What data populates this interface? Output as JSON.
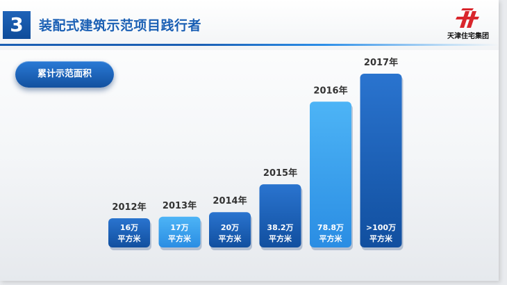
{
  "header": {
    "section_number": "3",
    "title": "装配式建筑示范项目践行者",
    "logo_text": "天津住宅集团"
  },
  "pill_label": "累计示范面积",
  "colors": {
    "dark_blue": "#1a5fb4",
    "light_blue": "#43a7ef"
  },
  "chart_data": {
    "type": "bar",
    "title": "累计示范面积",
    "categories": [
      "2012年",
      "2013年",
      "2014年",
      "2015年",
      "2016年",
      "2017年"
    ],
    "values": [
      16,
      17,
      20,
      38.2,
      78.8,
      100
    ],
    "unit": "万平方米",
    "bar_labels": [
      [
        "16万",
        "平方米"
      ],
      [
        "17万",
        "平方米"
      ],
      [
        "20万",
        "平方米"
      ],
      [
        "38.2万",
        "平方米"
      ],
      [
        "78.8万",
        "平方米"
      ],
      [
        ">100万",
        "平方米"
      ]
    ],
    "bar_styles": [
      "dark",
      "light",
      "dark",
      "dark",
      "light",
      "dark"
    ],
    "xlabel": "",
    "ylabel": "",
    "grid": false
  }
}
